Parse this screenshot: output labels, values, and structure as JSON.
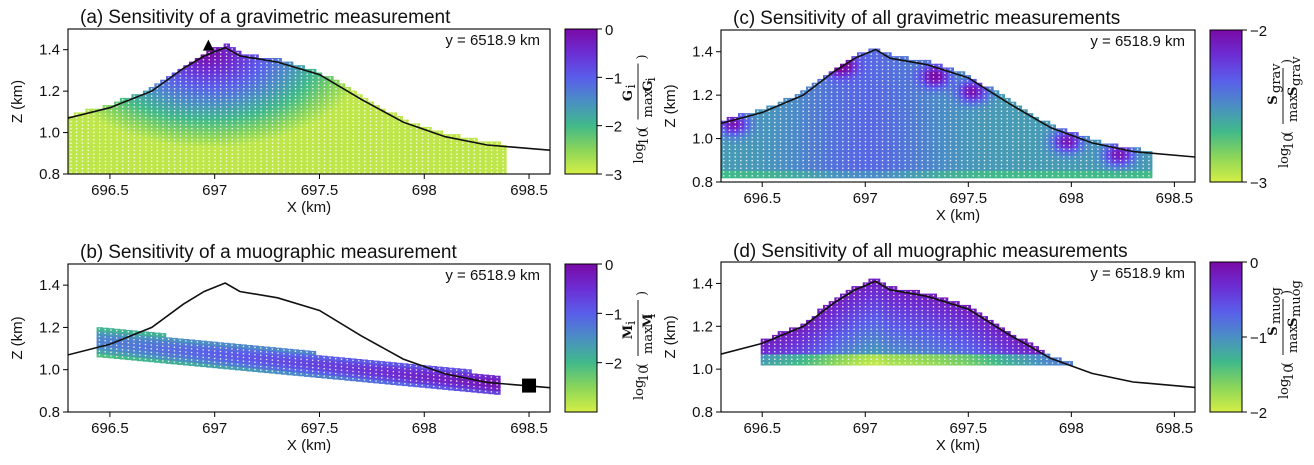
{
  "colors": {
    "colormap": [
      "#d5ef45",
      "#8bd55a",
      "#41b98a",
      "#4a8fc4",
      "#5a5eea",
      "#6c2ed4",
      "#7a0aa6"
    ],
    "terrain_line": "#111111",
    "grid_dot": "#ffffff",
    "background": "#ffffff"
  },
  "chart_data": [
    {
      "id": "a",
      "type": "heatmap",
      "panel_label": "(a)",
      "title": "Sensitivity of a gravimetric measurement",
      "annotation": "y = 6518.9 km",
      "xlabel": "X (km)",
      "ylabel": "Z (km)",
      "xlim": [
        696.3,
        698.6
      ],
      "ylim": [
        0.8,
        1.5
      ],
      "xticks": [
        {
          "value": 696.5,
          "label": "696.5"
        },
        {
          "value": 697.0,
          "label": "697"
        },
        {
          "value": 697.5,
          "label": "697.5"
        },
        {
          "value": 698.0,
          "label": "698"
        },
        {
          "value": 698.5,
          "label": "698.5"
        }
      ],
      "yticks": [
        {
          "value": 0.8,
          "label": "0.8"
        },
        {
          "value": 1.0,
          "label": "1.0"
        },
        {
          "value": 1.2,
          "label": "1.2"
        },
        {
          "value": 1.4,
          "label": "1.4"
        }
      ],
      "colorbar": {
        "range": [
          -3,
          0
        ],
        "ticks": [
          {
            "value": 0,
            "label": "0"
          },
          {
            "value": -1,
            "label": "−1"
          },
          {
            "value": -2,
            "label": "−2"
          },
          {
            "value": -3,
            "label": "−3"
          }
        ],
        "label_func": "log",
        "label_sub": "10",
        "label_num": "G",
        "label_num_sub": "i",
        "label_den_pre": "max",
        "label_den": "G",
        "label_den_sub": "i"
      },
      "marker": {
        "shape": "triangle",
        "x": 696.97,
        "z": 1.415
      },
      "terrain": [
        [
          696.3,
          1.07
        ],
        [
          696.5,
          1.12
        ],
        [
          696.7,
          1.2
        ],
        [
          696.85,
          1.31
        ],
        [
          696.95,
          1.37
        ],
        [
          697.05,
          1.41
        ],
        [
          697.12,
          1.37
        ],
        [
          697.3,
          1.34
        ],
        [
          697.5,
          1.28
        ],
        [
          697.7,
          1.16
        ],
        [
          697.9,
          1.05
        ],
        [
          698.1,
          0.98
        ],
        [
          698.3,
          0.94
        ],
        [
          698.6,
          0.915
        ]
      ],
      "domain_bottom": 0.8,
      "domain_max_x": 698.4,
      "peak": {
        "x": 696.97,
        "z": 1.38
      },
      "colors": "gravity_point"
    },
    {
      "id": "b",
      "type": "heatmap",
      "panel_label": "(b)",
      "title": "Sensitivity of a muographic measurement",
      "annotation": "y = 6518.9 km",
      "xlabel": "X (km)",
      "ylabel": "Z (km)",
      "xlim": [
        696.3,
        698.6
      ],
      "ylim": [
        0.8,
        1.5
      ],
      "xticks": [
        {
          "value": 696.5,
          "label": "696.5"
        },
        {
          "value": 697.0,
          "label": "697"
        },
        {
          "value": 697.5,
          "label": "697.5"
        },
        {
          "value": 698.0,
          "label": "698"
        },
        {
          "value": 698.5,
          "label": "698.5"
        }
      ],
      "yticks": [
        {
          "value": 0.8,
          "label": "0.8"
        },
        {
          "value": 1.0,
          "label": "1.0"
        },
        {
          "value": 1.2,
          "label": "1.2"
        },
        {
          "value": 1.4,
          "label": "1.4"
        }
      ],
      "colorbar": {
        "range": [
          -3,
          0
        ],
        "ticks": [
          {
            "value": 0,
            "label": "0"
          },
          {
            "value": -1,
            "label": "−1"
          },
          {
            "value": -2,
            "label": "−2"
          }
        ],
        "label_func": "log",
        "label_sub": "10",
        "label_num": "M",
        "label_num_sub": "i",
        "label_den_pre": "max",
        "label_den": "M",
        "label_den_sub": "i"
      },
      "marker": {
        "shape": "square",
        "x": 698.5,
        "z": 0.925
      },
      "terrain": [
        [
          696.3,
          1.07
        ],
        [
          696.5,
          1.12
        ],
        [
          696.7,
          1.2
        ],
        [
          696.85,
          1.31
        ],
        [
          696.95,
          1.37
        ],
        [
          697.05,
          1.41
        ],
        [
          697.12,
          1.37
        ],
        [
          697.3,
          1.34
        ],
        [
          697.5,
          1.28
        ],
        [
          697.7,
          1.16
        ],
        [
          697.9,
          1.05
        ],
        [
          698.1,
          0.98
        ],
        [
          698.3,
          0.94
        ],
        [
          698.6,
          0.915
        ]
      ],
      "band": {
        "x0": 696.45,
        "z0": 1.135,
        "x1": 698.35,
        "z1": 0.935,
        "half_width": 0.065
      },
      "colors": "muon_point"
    },
    {
      "id": "c",
      "type": "heatmap",
      "panel_label": "(c)",
      "title": "Sensitivity of all gravimetric measurements",
      "annotation": "y = 6518.9 km",
      "xlabel": "X (km)",
      "ylabel": "Z (km)",
      "xlim": [
        696.3,
        698.6
      ],
      "ylim": [
        0.8,
        1.5
      ],
      "xticks": [
        {
          "value": 696.5,
          "label": "696.5"
        },
        {
          "value": 697.0,
          "label": "697"
        },
        {
          "value": 697.5,
          "label": "697.5"
        },
        {
          "value": 698.0,
          "label": "698"
        },
        {
          "value": 698.5,
          "label": "698.5"
        }
      ],
      "yticks": [
        {
          "value": 0.8,
          "label": "0.8"
        },
        {
          "value": 1.0,
          "label": "1.0"
        },
        {
          "value": 1.2,
          "label": "1.2"
        },
        {
          "value": 1.4,
          "label": "1.4"
        }
      ],
      "colorbar": {
        "range": [
          -3,
          -2
        ],
        "ticks": [
          {
            "value": -2,
            "label": "−2"
          },
          {
            "value": -3,
            "label": "−3"
          }
        ],
        "label_func": "log",
        "label_sub": "10",
        "label_num": "S",
        "label_num_sub": "grav",
        "label_den_pre": "max",
        "label_den": "S",
        "label_den_sub": "grav"
      },
      "terrain": [
        [
          696.3,
          1.07
        ],
        [
          696.5,
          1.12
        ],
        [
          696.7,
          1.2
        ],
        [
          696.85,
          1.31
        ],
        [
          696.95,
          1.37
        ],
        [
          697.05,
          1.41
        ],
        [
          697.12,
          1.37
        ],
        [
          697.3,
          1.34
        ],
        [
          697.5,
          1.28
        ],
        [
          697.7,
          1.16
        ],
        [
          697.9,
          1.05
        ],
        [
          698.1,
          0.98
        ],
        [
          698.3,
          0.94
        ],
        [
          698.6,
          0.915
        ]
      ],
      "domain_bottom": 0.82,
      "domain_max_x": 698.4,
      "stations": [
        {
          "x": 696.36,
          "z": 1.07
        },
        {
          "x": 696.88,
          "z": 1.34
        },
        {
          "x": 697.34,
          "z": 1.29
        },
        {
          "x": 697.52,
          "z": 1.22
        },
        {
          "x": 697.98,
          "z": 0.99
        },
        {
          "x": 698.23,
          "z": 0.93
        }
      ],
      "colors": "gravity_all"
    },
    {
      "id": "d",
      "type": "heatmap",
      "panel_label": "(d)",
      "title": "Sensitivity of all muographic measurements",
      "annotation": "y = 6518.9 km",
      "xlabel": "X (km)",
      "ylabel": "Z (km)",
      "xlim": [
        696.3,
        698.6
      ],
      "ylim": [
        0.8,
        1.5
      ],
      "xticks": [
        {
          "value": 696.5,
          "label": "696.5"
        },
        {
          "value": 697.0,
          "label": "697"
        },
        {
          "value": 697.5,
          "label": "697.5"
        },
        {
          "value": 698.0,
          "label": "698"
        },
        {
          "value": 698.5,
          "label": "698.5"
        }
      ],
      "yticks": [
        {
          "value": 0.8,
          "label": "0.8"
        },
        {
          "value": 1.0,
          "label": "1.0"
        },
        {
          "value": 1.2,
          "label": "1.2"
        },
        {
          "value": 1.4,
          "label": "1.4"
        }
      ],
      "colorbar": {
        "range": [
          -2,
          0
        ],
        "ticks": [
          {
            "value": 0,
            "label": "0"
          },
          {
            "value": -1,
            "label": "−1"
          },
          {
            "value": -2,
            "label": "−2"
          }
        ],
        "label_func": "log",
        "label_sub": "10",
        "label_num": "S",
        "label_num_sub": "muog",
        "label_den_pre": "max",
        "label_den": "S",
        "label_den_sub": "muog"
      },
      "terrain": [
        [
          696.3,
          1.07
        ],
        [
          696.5,
          1.12
        ],
        [
          696.7,
          1.2
        ],
        [
          696.85,
          1.31
        ],
        [
          696.95,
          1.37
        ],
        [
          697.05,
          1.41
        ],
        [
          697.12,
          1.37
        ],
        [
          697.3,
          1.34
        ],
        [
          697.5,
          1.28
        ],
        [
          697.7,
          1.16
        ],
        [
          697.9,
          1.05
        ],
        [
          698.1,
          0.98
        ],
        [
          698.3,
          0.94
        ],
        [
          698.6,
          0.915
        ]
      ],
      "domain_bottom": 1.02,
      "domain_max_x": 698.35,
      "colors": "muon_all"
    }
  ]
}
